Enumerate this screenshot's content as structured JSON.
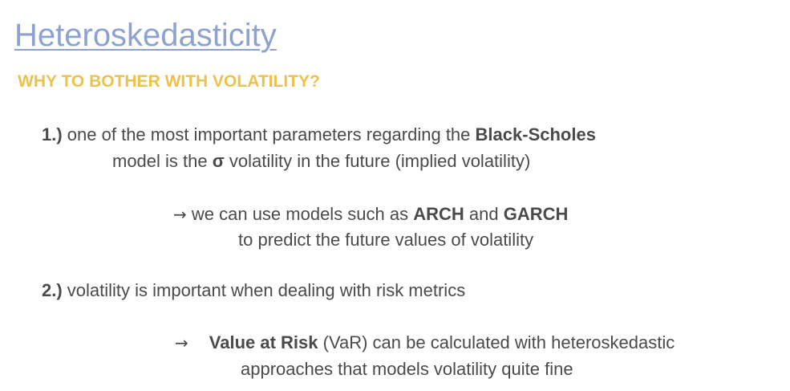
{
  "slide": {
    "title": "Heteroskedasticity",
    "subtitle": "WHY TO BOTHER WITH VOLATILITY?"
  },
  "point1": {
    "number": "1.)",
    "line1_text": " one of the most important parameters regarding the ",
    "line1_bold": "Black-Scholes",
    "line2_pre": "model is the ",
    "line2_sigma": "σ",
    "line2_post": " volatility in the future (implied volatility)",
    "arrow": "→",
    "sub_pre": " we can use models such as ",
    "sub_bold1": "ARCH",
    "sub_mid": " and ",
    "sub_bold2": "GARCH",
    "sub_line2": "to predict the future values of volatility"
  },
  "point2": {
    "number": "2.)",
    "text": " volatility is important when dealing with risk metrics",
    "arrow": "→",
    "sub_bold": "Value at Risk",
    "sub_post": " (VaR) can be calculated with heteroskedastic",
    "sub_line2": "approaches that models volatility quite fine"
  }
}
